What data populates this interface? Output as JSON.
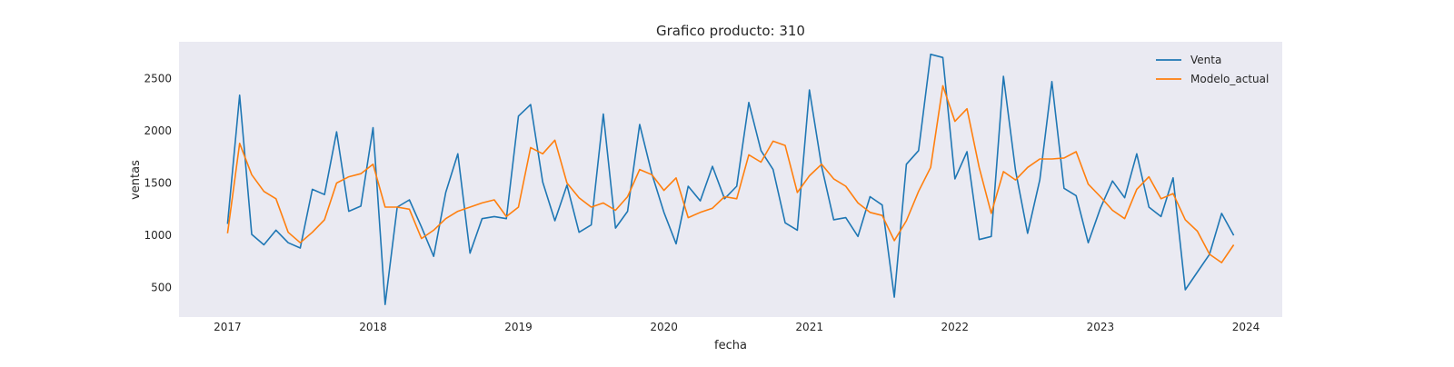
{
  "chart_data": {
    "type": "line",
    "title": "Grafico producto: 310",
    "xlabel": "fecha",
    "ylabel": "ventas",
    "x_start": "2017-01",
    "x_frequency": "monthly",
    "xlim": [
      "2016-09",
      "2024-04"
    ],
    "ylim": [
      220,
      2850
    ],
    "x_ticks": [
      {
        "label": "2017",
        "value": "2017-01"
      },
      {
        "label": "2018",
        "value": "2018-01"
      },
      {
        "label": "2019",
        "value": "2019-01"
      },
      {
        "label": "2020",
        "value": "2020-01"
      },
      {
        "label": "2021",
        "value": "2021-01"
      },
      {
        "label": "2022",
        "value": "2022-01"
      },
      {
        "label": "2023",
        "value": "2023-01"
      },
      {
        "label": "2024",
        "value": "2024-01"
      }
    ],
    "y_ticks": [
      500,
      1000,
      1500,
      2000,
      2500
    ],
    "grid": false,
    "legend_position": "upper right",
    "series": [
      {
        "name": "Venta",
        "color": "#1f77b4",
        "values": [
          1110,
          2340,
          1010,
          910,
          1050,
          930,
          880,
          1440,
          1390,
          1990,
          1230,
          1280,
          2030,
          340,
          1270,
          1340,
          1080,
          800,
          1410,
          1780,
          830,
          1160,
          1180,
          1160,
          2140,
          2250,
          1510,
          1140,
          1480,
          1030,
          1100,
          2160,
          1070,
          1230,
          2060,
          1590,
          1220,
          920,
          1470,
          1330,
          1660,
          1350,
          1470,
          2270,
          1810,
          1630,
          1120,
          1050,
          2390,
          1660,
          1150,
          1170,
          990,
          1370,
          1290,
          410,
          1680,
          1810,
          2730,
          2700,
          1540,
          1800,
          960,
          990,
          2520,
          1620,
          1020,
          1530,
          2470,
          1450,
          1380,
          930,
          1260,
          1520,
          1360,
          1780,
          1270,
          1180,
          1550,
          480,
          650,
          820,
          1210,
          1000
        ]
      },
      {
        "name": "Modelo_actual",
        "color": "#ff7f0e",
        "values": [
          1020,
          1880,
          1580,
          1420,
          1350,
          1030,
          930,
          1030,
          1150,
          1500,
          1560,
          1590,
          1680,
          1270,
          1270,
          1250,
          970,
          1050,
          1160,
          1230,
          1270,
          1310,
          1340,
          1180,
          1270,
          1840,
          1780,
          1910,
          1500,
          1360,
          1270,
          1310,
          1240,
          1370,
          1630,
          1580,
          1430,
          1550,
          1170,
          1220,
          1260,
          1370,
          1350,
          1770,
          1700,
          1900,
          1860,
          1410,
          1570,
          1680,
          1540,
          1470,
          1310,
          1220,
          1190,
          950,
          1140,
          1420,
          1650,
          2430,
          2090,
          2210,
          1650,
          1210,
          1610,
          1530,
          1650,
          1730,
          1730,
          1740,
          1800,
          1490,
          1370,
          1240,
          1160,
          1440,
          1560,
          1350,
          1400,
          1150,
          1040,
          820,
          740,
          910
        ]
      }
    ]
  }
}
